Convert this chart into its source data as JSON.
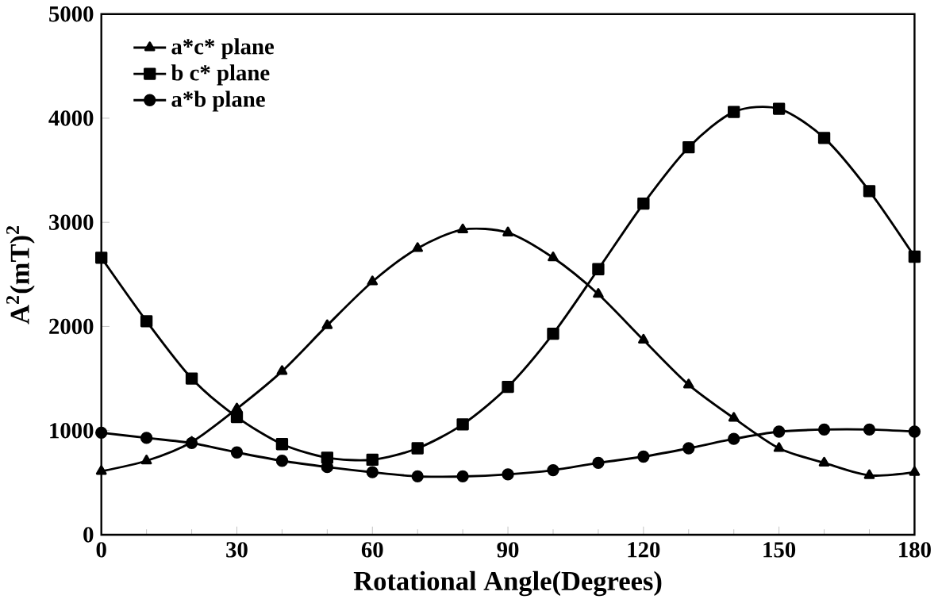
{
  "chart_data": {
    "type": "line",
    "xlabel": "Rotational Angle(Degrees)",
    "ylabel": "A$^{2}$(mT)$^{2}$",
    "x": [
      0,
      10,
      20,
      30,
      40,
      50,
      60,
      70,
      80,
      90,
      100,
      110,
      120,
      130,
      140,
      150,
      160,
      170,
      180
    ],
    "series": [
      {
        "name": "a*c* plane",
        "color": "#000000",
        "marker": "triangle",
        "values": [
          610,
          710,
          890,
          1210,
          1570,
          2010,
          2430,
          2750,
          2930,
          2900,
          2660,
          2310,
          1870,
          1440,
          1120,
          830,
          690,
          570,
          600
        ]
      },
      {
        "name": "b c* plane",
        "color": "#000000",
        "marker": "square",
        "values": [
          2660,
          2050,
          1500,
          1130,
          870,
          740,
          720,
          830,
          1060,
          1420,
          1930,
          2550,
          3180,
          3720,
          4060,
          4090,
          3810,
          3300,
          2670
        ]
      },
      {
        "name": "a*b plane",
        "color": "#000000",
        "marker": "circle",
        "values": [
          980,
          930,
          880,
          790,
          710,
          650,
          600,
          560,
          560,
          580,
          620,
          690,
          750,
          830,
          920,
          990,
          1010,
          1010,
          990
        ]
      }
    ],
    "xlim": [
      0,
      180
    ],
    "xticks": [
      0,
      30,
      60,
      90,
      120,
      150,
      180
    ],
    "ylim": [
      0,
      5000
    ],
    "yticks": [
      0,
      1000,
      2000,
      3000,
      4000,
      5000
    ],
    "legend": "top left",
    "grid": false,
    "line_style": "solid"
  }
}
